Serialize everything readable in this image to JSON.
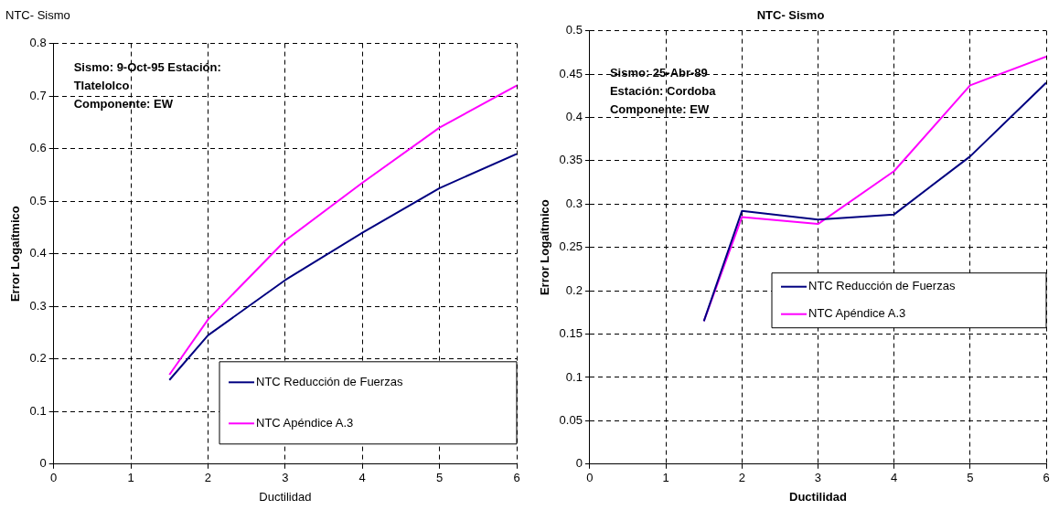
{
  "chart_data": [
    {
      "type": "line",
      "title": "NTC- Sismo",
      "xlabel": "Ductilidad",
      "ylabel": "Error Logaítmico",
      "x": [
        1.5,
        2,
        3,
        4,
        5,
        6
      ],
      "xlim": [
        0,
        6
      ],
      "xticks": [
        0,
        1,
        2,
        3,
        4,
        5,
        6
      ],
      "ylim": [
        0,
        0.8
      ],
      "yticks": [
        0,
        0.1,
        0.2,
        0.3,
        0.4,
        0.5,
        0.6,
        0.7,
        0.8
      ],
      "grid": true,
      "legend": "bottom right",
      "marker": "none",
      "line_style": "solid",
      "annotations": [
        "Sismo: 9-Oct-95 Estación:",
        "Tlatelolco",
        "Componente: EW"
      ],
      "series": [
        {
          "name": "NTC Reducción de Fuerzas",
          "color": "#000080",
          "values": [
            0.16,
            0.245,
            0.35,
            0.44,
            0.525,
            0.59
          ]
        },
        {
          "name": "NTC Apéndice A.3",
          "color": "#ff00ff",
          "values": [
            0.17,
            0.275,
            0.425,
            0.535,
            0.64,
            0.72
          ]
        }
      ]
    },
    {
      "type": "line",
      "title": "NTC- Sismo",
      "xlabel": "Ductilidad",
      "ylabel": "Error Logaítmico",
      "x": [
        1.5,
        2,
        3,
        4,
        5,
        6
      ],
      "xlim": [
        0,
        6
      ],
      "xticks": [
        0,
        1,
        2,
        3,
        4,
        5,
        6
      ],
      "ylim": [
        0,
        0.5
      ],
      "yticks": [
        0,
        0.05,
        0.1,
        0.15,
        0.2,
        0.25,
        0.3,
        0.35,
        0.4,
        0.45,
        0.5
      ],
      "grid": true,
      "legend": "bottom right",
      "marker": "none",
      "line_style": "solid",
      "annotations": [
        "Sismo: 25-Abr-89",
        "Estación: Cordoba",
        "Componente: EW"
      ],
      "series": [
        {
          "name": "NTC Reducción de Fuerzas",
          "color": "#000080",
          "values": [
            0.165,
            0.292,
            0.282,
            0.288,
            0.355,
            0.44
          ]
        },
        {
          "name": "NTC Apéndice A.3",
          "color": "#ff00ff",
          "values": [
            0.165,
            0.285,
            0.277,
            0.338,
            0.437,
            0.47
          ]
        }
      ]
    }
  ]
}
